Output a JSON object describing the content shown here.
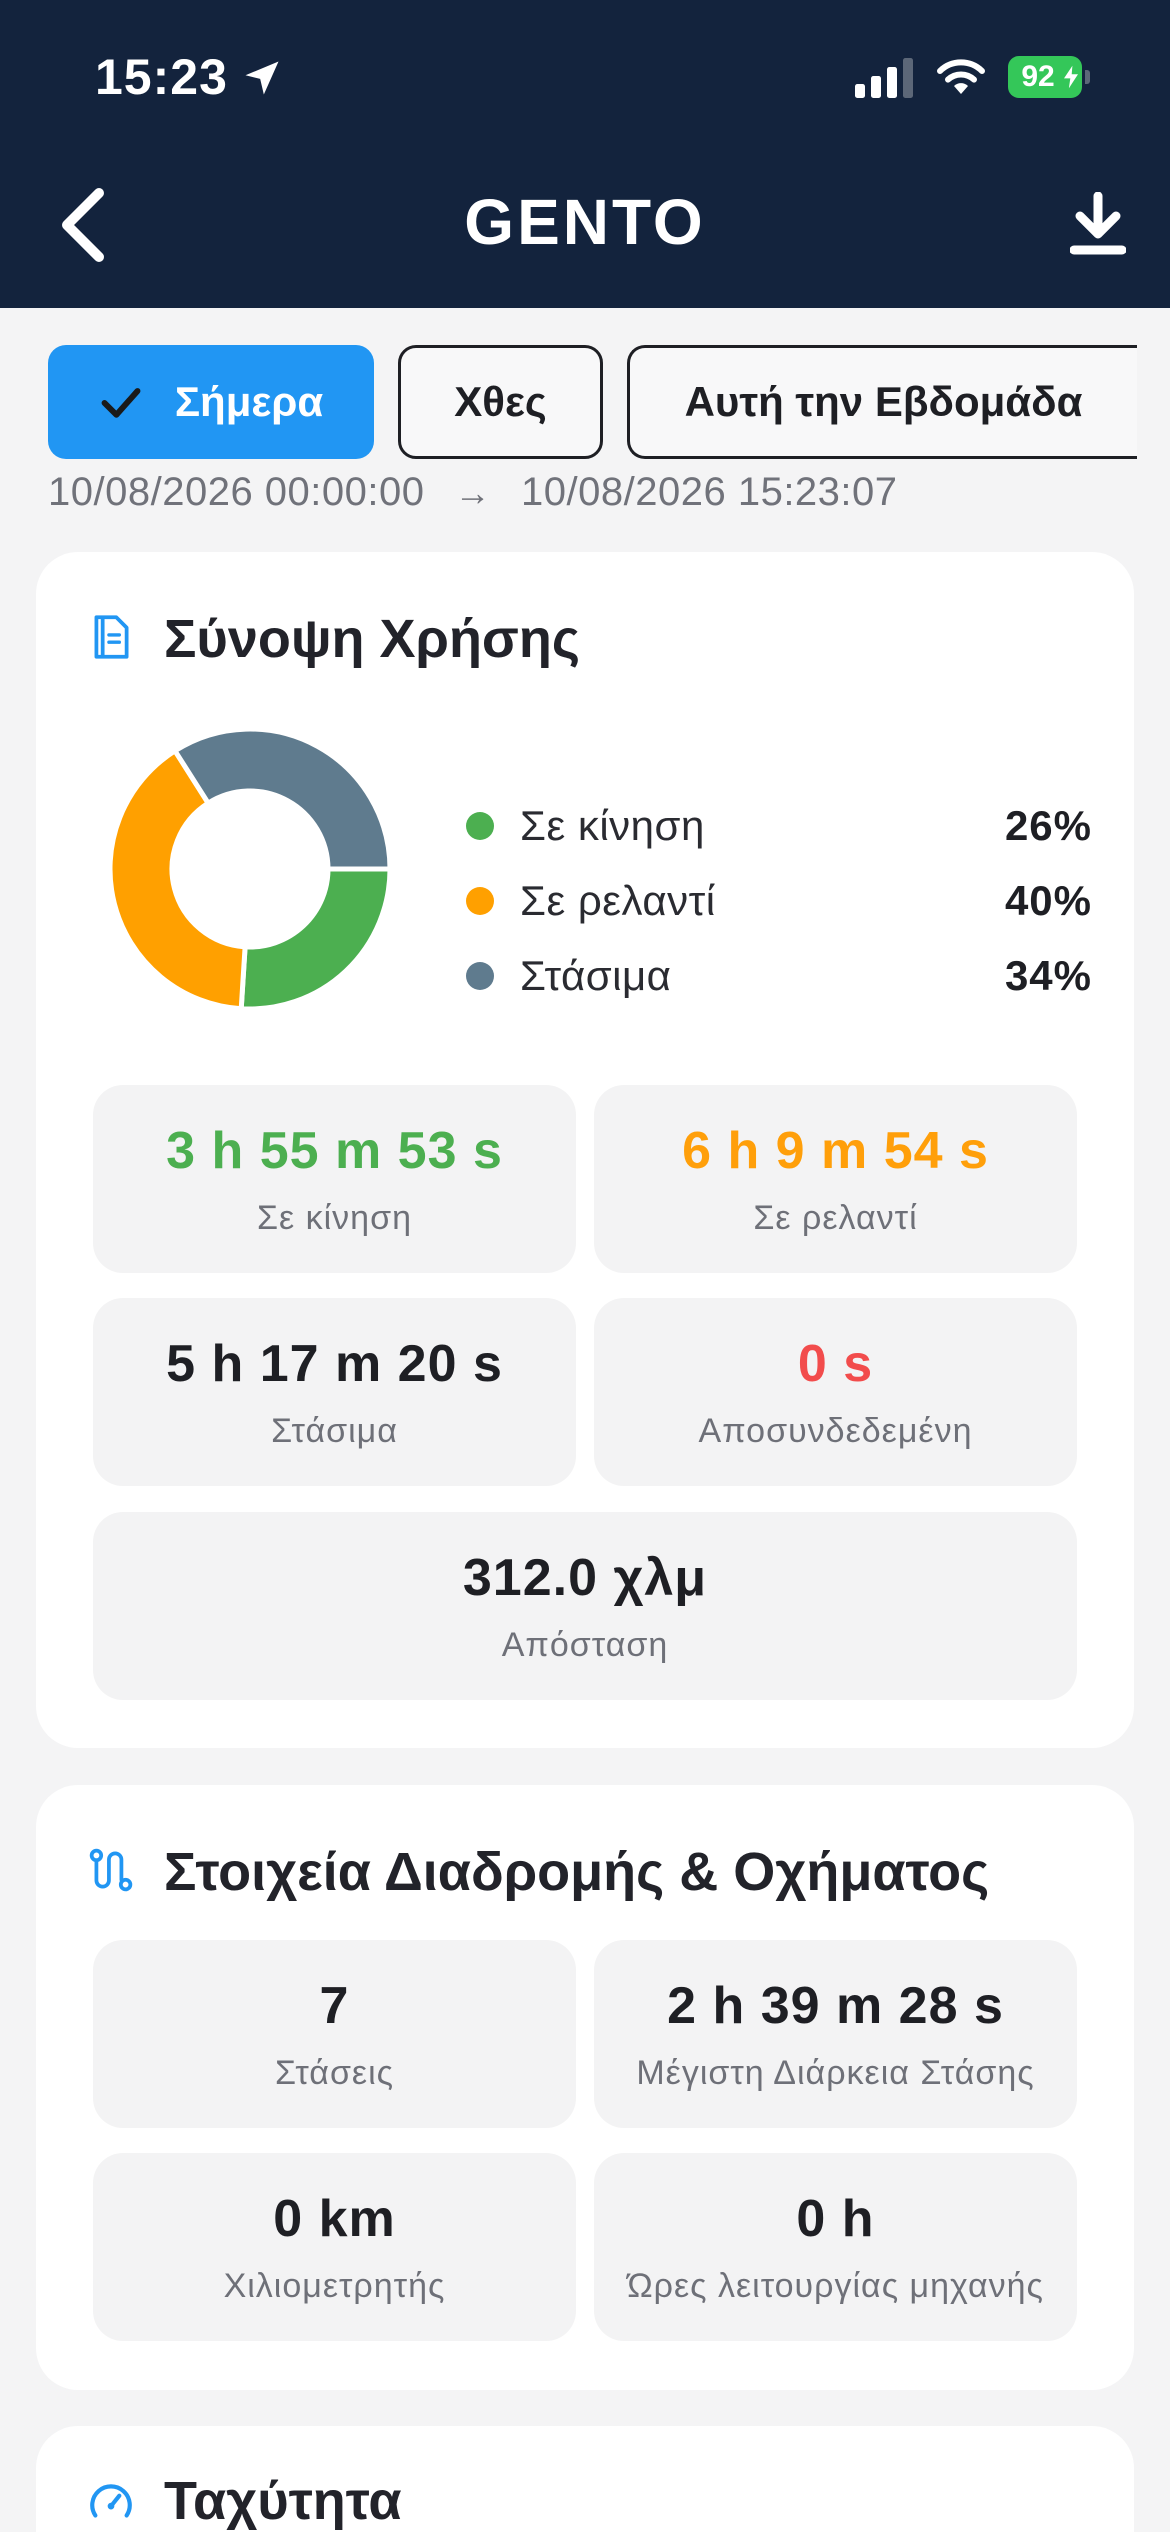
{
  "status_bar": {
    "time": "15:23",
    "battery": "92"
  },
  "header": {
    "title": "GENTO"
  },
  "filters": [
    {
      "label": "Σήμερα",
      "selected": true
    },
    {
      "label": "Χθες",
      "selected": false
    },
    {
      "label": "Αυτή την Εβδομάδα",
      "selected": false
    }
  ],
  "date_range": {
    "from": "10/08/2026 00:00:00",
    "to": "10/08/2026 15:23:07"
  },
  "usage": {
    "title": "Σύνοψη Χρήσης",
    "legend": [
      {
        "label": "Σε κίνηση",
        "value": "26%",
        "color": "#4caf50"
      },
      {
        "label": "Σε ρελαντί",
        "value": "40%",
        "color": "#ffa000"
      },
      {
        "label": "Στάσιμα",
        "value": "34%",
        "color": "#5f7b8e"
      }
    ],
    "stats": {
      "moving": {
        "value": "3 h 55 m 53 s",
        "label": "Σε κίνηση"
      },
      "idle": {
        "value": "6 h 9 m 54 s",
        "label": "Σε ρελαντί"
      },
      "stopped": {
        "value": "5 h 17 m 20 s",
        "label": "Στάσιμα"
      },
      "disconnected": {
        "value": "0 s",
        "label": "Αποσυνδεδεμένη"
      },
      "distance": {
        "value": "312.0 χλμ",
        "label": "Απόσταση"
      }
    }
  },
  "chart_data": {
    "type": "pie",
    "categories": [
      "Σε κίνηση",
      "Σε ρελαντί",
      "Στάσιμα"
    ],
    "values": [
      26,
      40,
      34
    ],
    "colors": [
      "#4caf50",
      "#ffa000",
      "#5f7b8e"
    ]
  },
  "route": {
    "title": "Στοιχεία Διαδρομής & Οχήματος",
    "stats": {
      "stops": {
        "value": "7",
        "label": "Στάσεις"
      },
      "max_stop": {
        "value": "2 h 39 m 28 s",
        "label": "Μέγιστη Διάρκεια Στάσης"
      },
      "odometer": {
        "value": "0 km",
        "label": "Χιλιομετρητής"
      },
      "engine_hours": {
        "value": "0 h",
        "label": "Ώρες λειτουργίας μηχανής"
      }
    }
  },
  "speed": {
    "title": "Ταχύτητα"
  }
}
